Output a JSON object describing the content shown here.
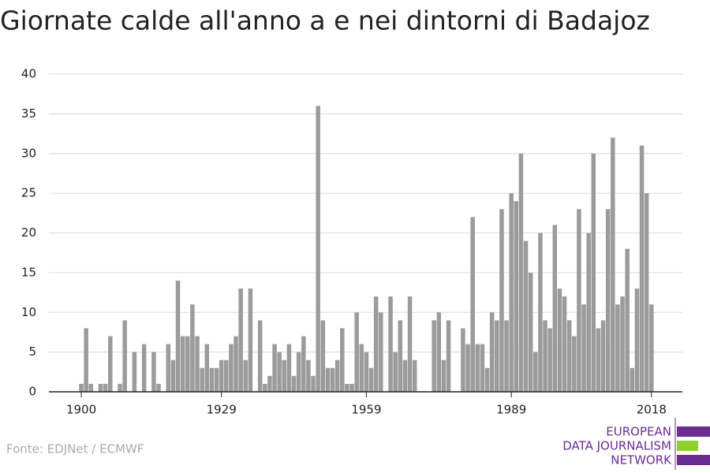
{
  "chart_data": {
    "type": "bar",
    "title": "Giornate calde all'anno a e nei dintorni di Badajoz",
    "x": [
      1900,
      1901,
      1902,
      1903,
      1904,
      1905,
      1906,
      1907,
      1908,
      1909,
      1910,
      1911,
      1912,
      1913,
      1914,
      1915,
      1916,
      1917,
      1918,
      1919,
      1920,
      1921,
      1922,
      1923,
      1924,
      1925,
      1926,
      1927,
      1928,
      1929,
      1930,
      1931,
      1932,
      1933,
      1934,
      1935,
      1936,
      1937,
      1938,
      1939,
      1940,
      1941,
      1942,
      1943,
      1944,
      1945,
      1946,
      1947,
      1948,
      1949,
      1950,
      1951,
      1952,
      1953,
      1954,
      1955,
      1956,
      1957,
      1958,
      1959,
      1960,
      1961,
      1962,
      1963,
      1964,
      1965,
      1966,
      1967,
      1968,
      1969,
      1970,
      1971,
      1972,
      1973,
      1974,
      1975,
      1976,
      1977,
      1978,
      1979,
      1980,
      1981,
      1982,
      1983,
      1984,
      1985,
      1986,
      1987,
      1988,
      1989,
      1990,
      1991,
      1992,
      1993,
      1994,
      1995,
      1996,
      1997,
      1998,
      1999,
      2000,
      2001,
      2002,
      2003,
      2004,
      2005,
      2006,
      2007,
      2008,
      2009,
      2010,
      2011,
      2012,
      2013,
      2014,
      2015,
      2016,
      2017,
      2018
    ],
    "values": [
      1,
      8,
      1,
      0,
      1,
      1,
      7,
      0,
      1,
      9,
      0,
      5,
      0,
      6,
      0,
      5,
      1,
      0,
      6,
      4,
      14,
      7,
      7,
      11,
      7,
      3,
      6,
      3,
      3,
      4,
      4,
      6,
      7,
      13,
      4,
      13,
      0,
      9,
      1,
      2,
      6,
      5,
      4,
      6,
      2,
      5,
      7,
      4,
      2,
      36,
      9,
      3,
      3,
      4,
      8,
      1,
      1,
      10,
      6,
      5,
      3,
      12,
      10,
      0,
      12,
      5,
      9,
      4,
      12,
      4,
      0,
      0,
      0,
      9,
      10,
      4,
      9,
      0,
      0,
      8,
      6,
      22,
      6,
      6,
      3,
      10,
      9,
      23,
      9,
      25,
      24,
      30,
      19,
      15,
      5,
      20,
      9,
      8,
      21,
      13,
      12,
      9,
      7,
      23,
      11,
      20,
      30,
      8,
      9,
      23,
      32,
      11,
      12,
      18,
      3,
      13,
      31,
      25,
      11
    ],
    "color": "#9b9b9b",
    "xlim": [
      1893.3,
      2024.4
    ],
    "xticks": [
      1900,
      1929,
      1959,
      1989,
      2018
    ],
    "ylim": [
      0,
      40
    ],
    "yticks": [
      0,
      5,
      10,
      15,
      20,
      25,
      30,
      35,
      40
    ],
    "grid": true,
    "source": "Fonte: EDJNet / ECMWF",
    "logo": [
      "EUROPEAN",
      "DATA JOURNALISM",
      "NETWORK"
    ]
  }
}
